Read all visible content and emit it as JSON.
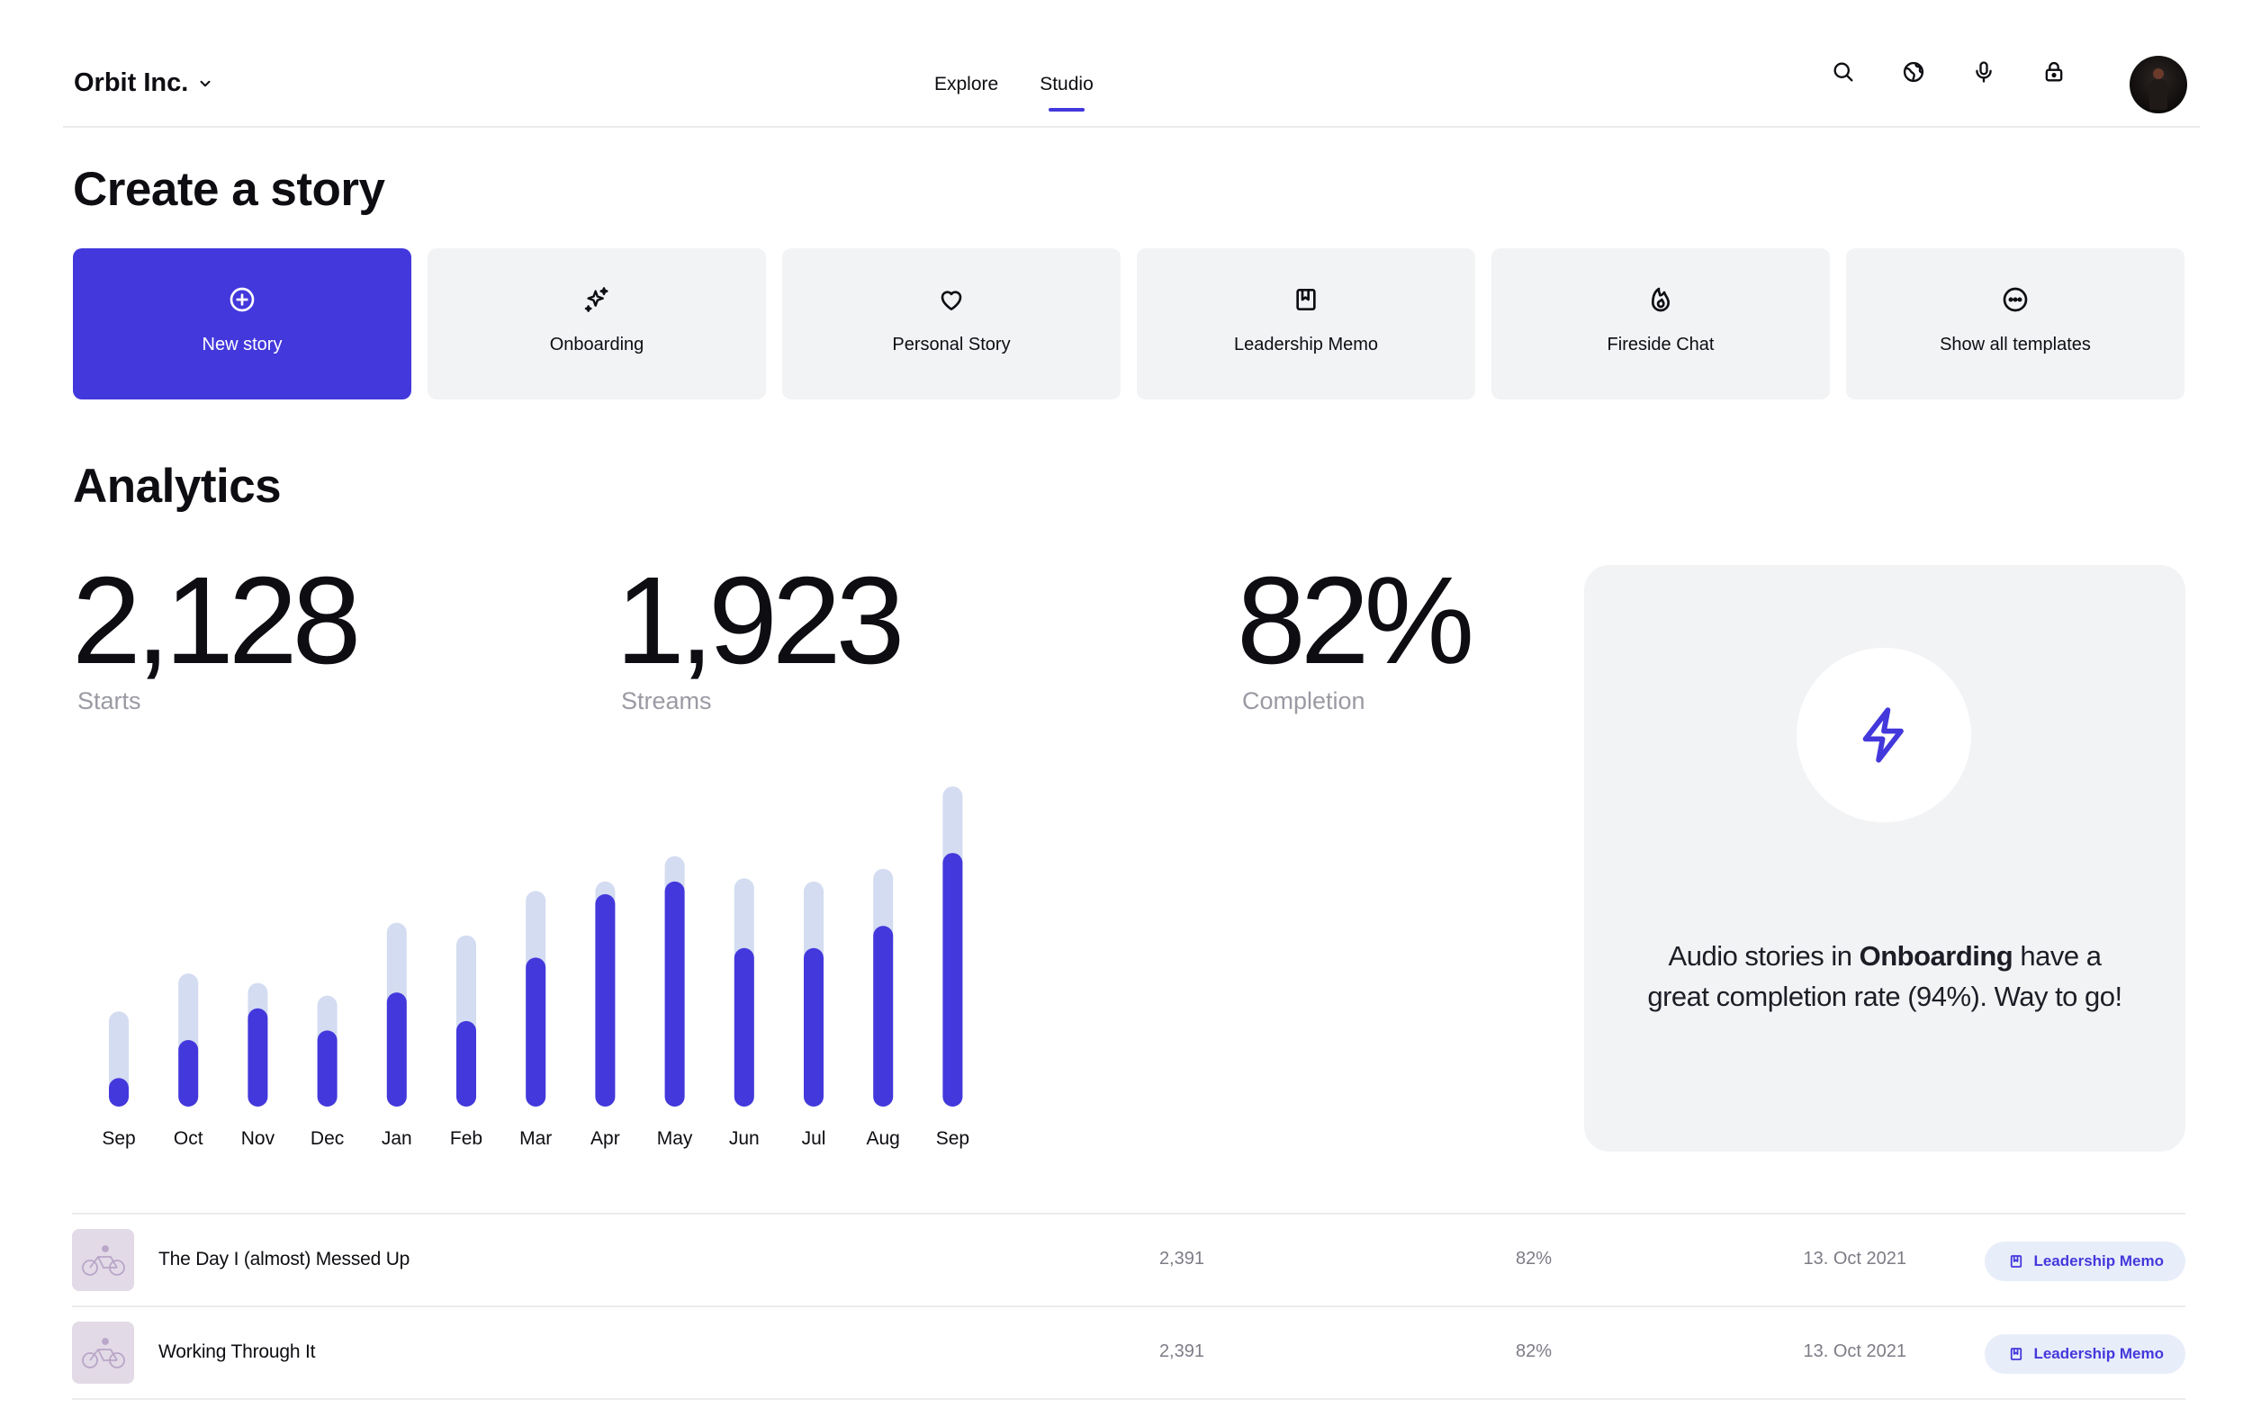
{
  "header": {
    "org_name": "Orbit Inc.",
    "nav": [
      {
        "label": "Explore",
        "active": false
      },
      {
        "label": "Studio",
        "active": true
      }
    ],
    "actions": [
      "search-icon",
      "globe-icon",
      "microphone-icon",
      "lock-icon"
    ]
  },
  "create": {
    "title": "Create a story",
    "templates": [
      {
        "label": "New story",
        "icon": "plus-circle-icon",
        "primary": true
      },
      {
        "label": "Onboarding",
        "icon": "sparkles-icon",
        "primary": false
      },
      {
        "label": "Personal Story",
        "icon": "heart-icon",
        "primary": false
      },
      {
        "label": "Leadership Memo",
        "icon": "book-icon",
        "primary": false
      },
      {
        "label": "Fireside Chat",
        "icon": "fire-icon",
        "primary": false
      },
      {
        "label": "Show all templates",
        "icon": "more-circle-icon",
        "primary": false
      }
    ]
  },
  "analytics": {
    "title": "Analytics",
    "stats": [
      {
        "value": "2,128",
        "label": "Starts"
      },
      {
        "value": "1,923",
        "label": "Streams"
      },
      {
        "value": "82%",
        "label": "Completion"
      }
    ],
    "insight": {
      "pre": "Audio stories in ",
      "highlight": "Onboarding",
      "post": " have a great completion rate (94%). Way to go!",
      "icon": "lightning-icon"
    }
  },
  "chart_data": {
    "type": "bar",
    "categories": [
      "Sep",
      "Oct",
      "Nov",
      "Dec",
      "Jan",
      "Feb",
      "Mar",
      "Apr",
      "May",
      "Jun",
      "Jul",
      "Aug",
      "Sep"
    ],
    "series": [
      {
        "values": [
          30,
          42,
          39,
          35,
          58,
          54,
          68,
          71,
          79,
          72,
          71,
          75,
          101
        ]
      },
      {
        "values": [
          9,
          21,
          31,
          24,
          36,
          27,
          47,
          67,
          71,
          50,
          50,
          57,
          80
        ]
      }
    ],
    "ylim": [
      0,
      105
    ],
    "grid": false,
    "colors": [
      "#d3dcf1",
      "#4338dc"
    ]
  },
  "stories": {
    "rows": [
      {
        "title": "The Day I (almost) Messed Up",
        "streams": "2,391",
        "completion": "82%",
        "date": "13. Oct 2021",
        "tag": "Leadership Memo"
      },
      {
        "title": "Working Through It",
        "streams": "2,391",
        "completion": "82%",
        "date": "13. Oct 2021",
        "tag": "Leadership Memo"
      }
    ]
  },
  "colors": {
    "accent": "#4338dc",
    "card_bg": "#f2f3f5",
    "muted_text": "#9a9aa3"
  }
}
